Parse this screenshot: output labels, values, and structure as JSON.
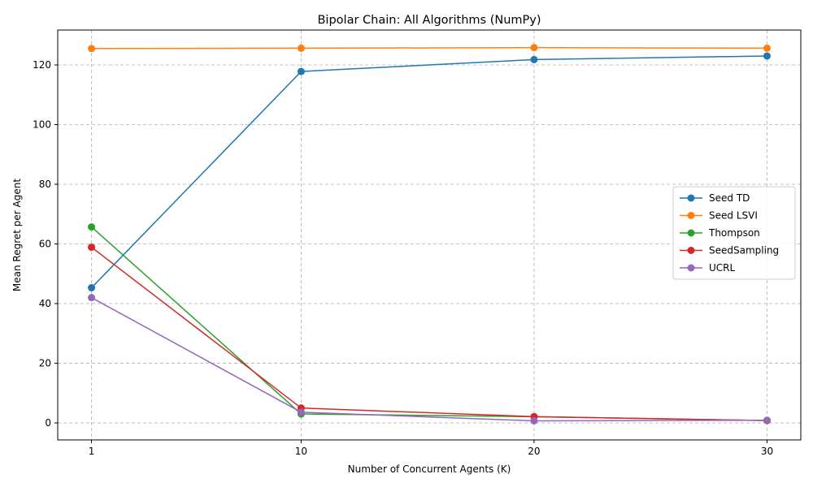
{
  "chart_data": {
    "type": "line",
    "title": "Bipolar Chain: All Algorithms (NumPy)",
    "xlabel": "Number of Concurrent Agents (K)",
    "ylabel": "Mean Regret per Agent",
    "x": [
      1,
      10,
      20,
      30
    ],
    "xticks": [
      1,
      10,
      20,
      30
    ],
    "yticks": [
      0,
      20,
      40,
      60,
      80,
      100,
      120
    ],
    "xlim": [
      -0.45,
      31.45
    ],
    "ylim": [
      -5.7,
      131.7
    ],
    "grid": true,
    "legend_position": "center-right",
    "series": [
      {
        "name": "Seed TD",
        "color": "#1f77b4",
        "values": [
          45.3,
          117.8,
          121.8,
          123.0
        ]
      },
      {
        "name": "Seed LSVI",
        "color": "#ff7f0e",
        "values": [
          125.5,
          125.6,
          125.8,
          125.6
        ]
      },
      {
        "name": "Thompson",
        "color": "#2ca02c",
        "values": [
          65.7,
          3.0,
          2.1,
          0.8
        ]
      },
      {
        "name": "SeedSampling",
        "color": "#d62728",
        "values": [
          58.9,
          5.0,
          2.1,
          0.8
        ]
      },
      {
        "name": "UCRL",
        "color": "#9467bd",
        "values": [
          42.0,
          3.6,
          0.7,
          0.9
        ]
      }
    ]
  }
}
